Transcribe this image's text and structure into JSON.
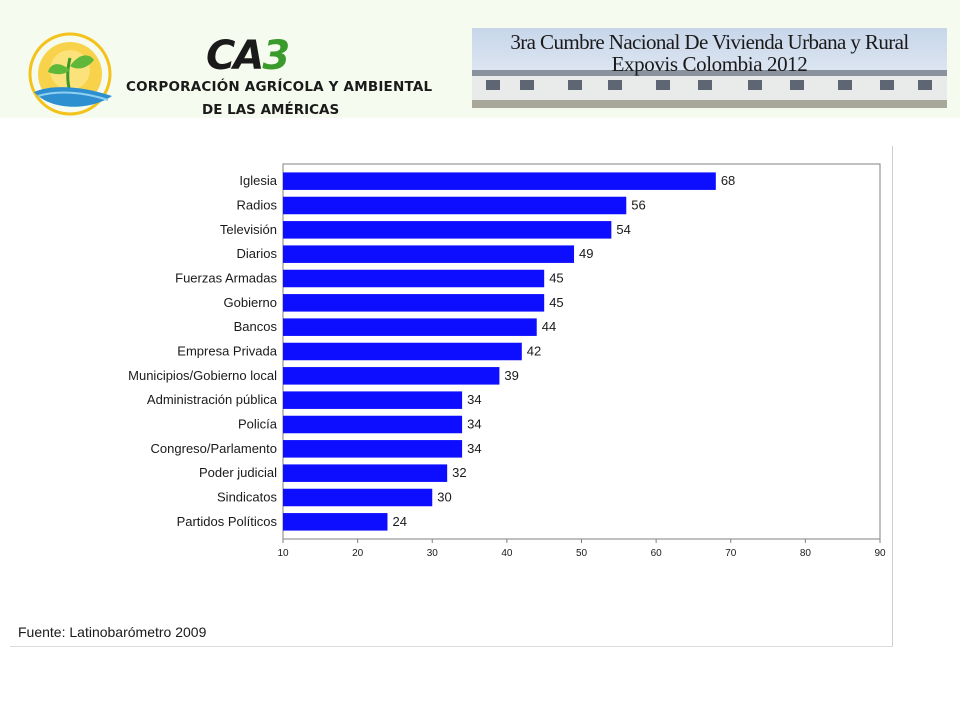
{
  "header": {
    "logo": {
      "mark_prefix": "CA",
      "mark_suffix": "3",
      "org_line1": "CORPORACIÓN AGRÍCOLA Y AMBIENTAL",
      "org_line2": "DE LAS AMÉRICAS",
      "icon": "sun-leaf-logo-icon",
      "colors": {
        "sun": "#f3c21b",
        "leaf": "#5fb83a",
        "water": "#2d8fd0",
        "brand_green": "#3a9a2b"
      }
    },
    "banner": {
      "line1": "3ra Cumbre Nacional De Vivienda Urbana y Rural",
      "line2": "Expovis Colombia 2012",
      "image": "row-of-houses-photo"
    }
  },
  "chart_data": {
    "type": "bar",
    "orientation": "horizontal",
    "categories": [
      "Iglesia",
      "Radios",
      "Televisión",
      "Diarios",
      "Fuerzas Armadas",
      "Gobierno",
      "Bancos",
      "Empresa Privada",
      "Municipios/Gobierno local",
      "Administración pública",
      "Policía",
      "Congreso/Parlamento",
      "Poder judicial",
      "Sindicatos",
      "Partidos Políticos"
    ],
    "values": [
      68,
      56,
      54,
      49,
      45,
      45,
      44,
      42,
      39,
      34,
      34,
      34,
      32,
      30,
      24
    ],
    "xlim": [
      10,
      90
    ],
    "xticks": [
      "10",
      "20",
      "30",
      "40",
      "50",
      "60",
      "70",
      "80",
      "90"
    ],
    "data_labels": true,
    "grid": false,
    "legend": "none",
    "bar_color": "#0d0dff"
  },
  "source": "Fuente: Latinobarómetro 2009"
}
